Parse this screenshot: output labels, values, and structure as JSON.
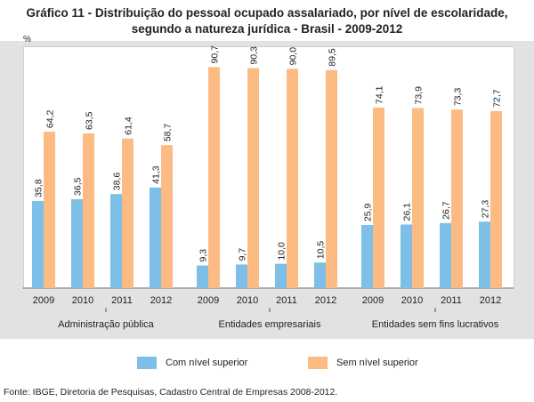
{
  "title_line1": "Gráfico 11 - Distribuição do pessoal ocupado assalariado, por nível de escolaridade,",
  "title_line2": "segundo a natureza jurídica - Brasil - 2009-2012",
  "source": "Fonte: IBGE, Diretoria de Pesquisas, Cadastro Central de Empresas 2008-2012.",
  "colors": {
    "com": "#7dbfe6",
    "sem": "#fdbb84"
  },
  "chart_data": {
    "type": "bar",
    "unit_label": "%",
    "ylim": [
      0,
      100
    ],
    "groups": [
      {
        "label": "Administração pública",
        "years": [
          "2009",
          "2010",
          "2011",
          "2012"
        ]
      },
      {
        "label": "Entidades empresariais",
        "years": [
          "2009",
          "2010",
          "2011",
          "2012"
        ]
      },
      {
        "label": "Entidades sem fins lucrativos",
        "years": [
          "2009",
          "2010",
          "2011",
          "2012"
        ]
      }
    ],
    "series": [
      {
        "name": "Com nível superior",
        "values": [
          [
            35.8,
            36.5,
            38.6,
            41.3
          ],
          [
            9.3,
            9.7,
            10.0,
            10.5
          ],
          [
            25.9,
            26.1,
            26.7,
            27.3
          ]
        ],
        "labels": [
          [
            "35,8",
            "36,5",
            "38,6",
            "41,3"
          ],
          [
            "9,3",
            "9,7",
            "10,0",
            "10,5"
          ],
          [
            "25,9",
            "26,1",
            "26,7",
            "27,3"
          ]
        ]
      },
      {
        "name": "Sem nível superior",
        "values": [
          [
            64.2,
            63.5,
            61.4,
            58.7
          ],
          [
            90.7,
            90.3,
            90.0,
            89.5
          ],
          [
            74.1,
            73.9,
            73.3,
            72.7
          ]
        ],
        "labels": [
          [
            "64,2",
            "63,5",
            "61,4",
            "58,7"
          ],
          [
            "90,7",
            "90,3",
            "90,0",
            "89,5"
          ],
          [
            "74,1",
            "73,9",
            "73,3",
            "72,7"
          ]
        ]
      }
    ]
  }
}
